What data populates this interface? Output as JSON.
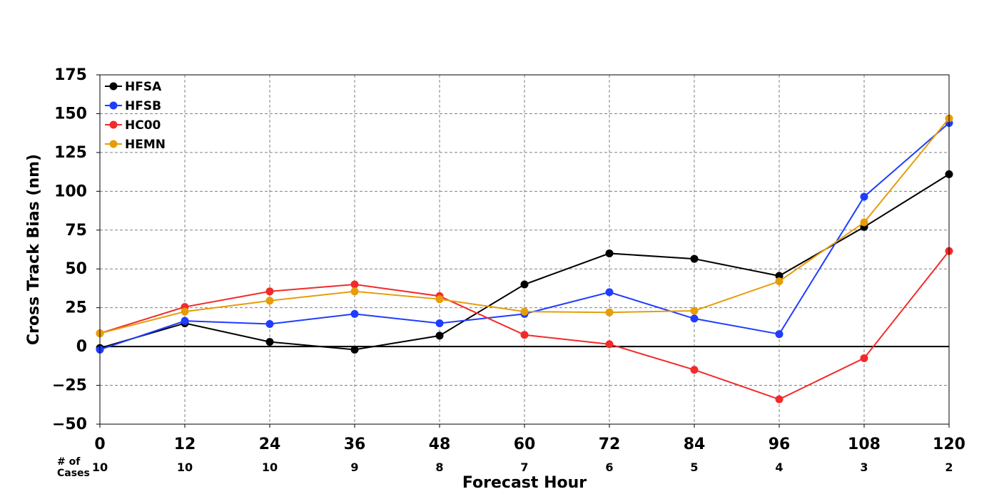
{
  "chart_data": {
    "type": "line",
    "title": "",
    "xlabel": "Forecast Hour",
    "ylabel": "Cross Track Bias (nm)",
    "xlim": [
      0,
      120
    ],
    "ylim": [
      -50,
      175
    ],
    "x": [
      0,
      12,
      24,
      36,
      48,
      60,
      72,
      84,
      96,
      108,
      120
    ],
    "x_tick_labels": [
      "0",
      "12",
      "24",
      "36",
      "48",
      "60",
      "72",
      "84",
      "96",
      "108",
      "120"
    ],
    "y_ticks": [
      -50,
      -25,
      0,
      25,
      50,
      75,
      100,
      125,
      150,
      175
    ],
    "y_tick_labels": [
      "−50",
      "−25",
      "0",
      "25",
      "50",
      "75",
      "100",
      "125",
      "150",
      "175"
    ],
    "grid": true,
    "legend_position": "top-left",
    "cases_label": "# of\nCases",
    "cases": [
      "10",
      "10",
      "10",
      "9",
      "8",
      "7",
      "6",
      "5",
      "4",
      "3",
      "2"
    ],
    "series": [
      {
        "name": "HFSA",
        "color": "#000000",
        "values": [
          -1,
          15,
          3,
          -2,
          7,
          40,
          60,
          56.5,
          45.5,
          77,
          111
        ]
      },
      {
        "name": "HFSB",
        "color": "#1f3cff",
        "values": [
          -2,
          16.5,
          14.5,
          21,
          15,
          21,
          35,
          18,
          8,
          96.5,
          144
        ]
      },
      {
        "name": "HC00",
        "color": "#f22a2a",
        "values": [
          8.5,
          25.5,
          35.5,
          40,
          32.5,
          7.5,
          1.5,
          -15,
          -34,
          -7.5,
          61.5
        ]
      },
      {
        "name": "HEMN",
        "color": "#e69d0a",
        "values": [
          8.5,
          22.5,
          29.5,
          35.5,
          30.5,
          22.5,
          22,
          23,
          42,
          80,
          147
        ]
      }
    ]
  }
}
